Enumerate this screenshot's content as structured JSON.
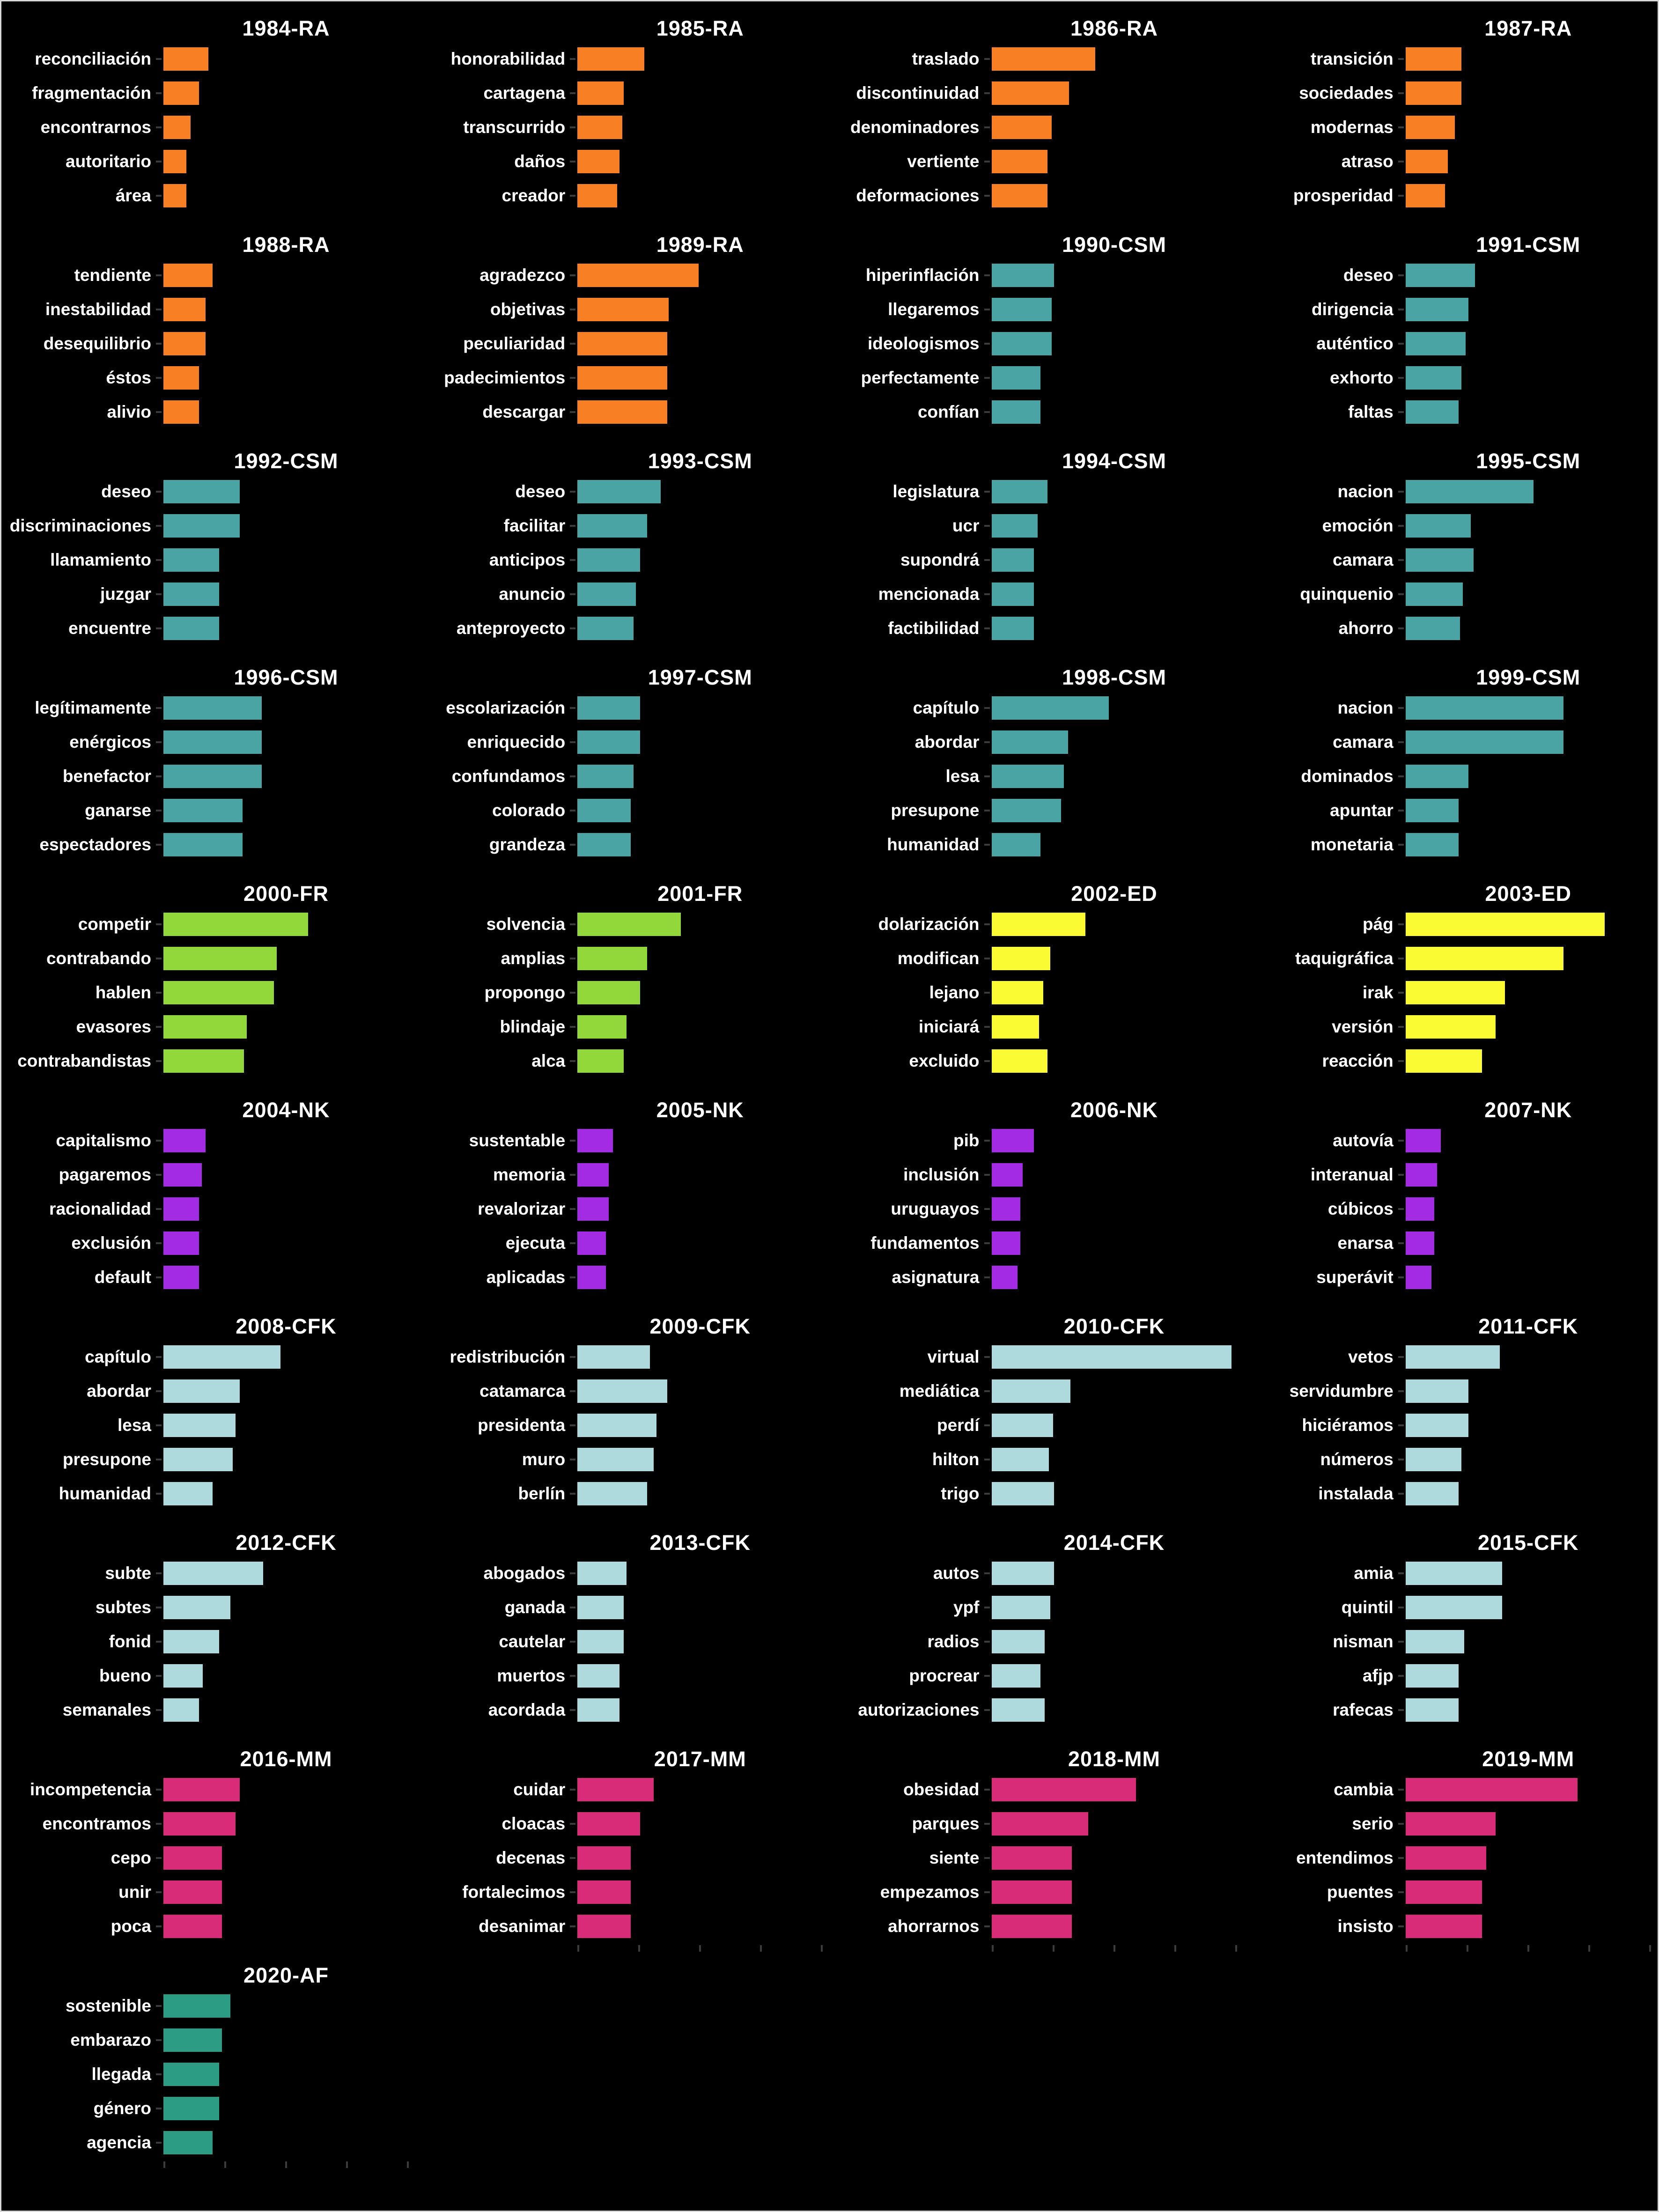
{
  "figure": {
    "background": "#000000",
    "tick_color": "#3b3b3b",
    "text_color": "#ffffff",
    "layout": {
      "columns": 4,
      "rows": 10,
      "legend": "none",
      "grid": "off"
    },
    "xlim": [
      0,
      180
    ],
    "groups": {
      "RA": "#f87f23",
      "CSM": "#4ba4a4",
      "FR": "#93d83a",
      "ED": "#fbfb33",
      "NK": "#a42be4",
      "CFK": "#aedade",
      "MM": "#d92c78",
      "AF": "#2d9c85"
    }
  },
  "chart_data": [
    {
      "type": "bar",
      "orientation": "horizontal",
      "title": "1984-RA",
      "group": "RA",
      "color": "#f87f23",
      "categories": [
        "reconciliación",
        "fragmentación",
        "encontrarnos",
        "autoritario",
        "área"
      ],
      "values": [
        33,
        26,
        20,
        17,
        17
      ]
    },
    {
      "type": "bar",
      "orientation": "horizontal",
      "title": "1985-RA",
      "group": "RA",
      "color": "#f87f23",
      "categories": [
        "honorabilidad",
        "cartagena",
        "transcurrido",
        "daños",
        "creador"
      ],
      "values": [
        49,
        34,
        33,
        31,
        29
      ]
    },
    {
      "type": "bar",
      "orientation": "horizontal",
      "title": "1986-RA",
      "group": "RA",
      "color": "#f87f23",
      "categories": [
        "traslado",
        "discontinuidad",
        "denominadores",
        "vertiente",
        "deformaciones"
      ],
      "values": [
        76,
        57,
        44,
        41,
        41
      ]
    },
    {
      "type": "bar",
      "orientation": "horizontal",
      "title": "1987-RA",
      "group": "RA",
      "color": "#f87f23",
      "categories": [
        "transición",
        "sociedades",
        "modernas",
        "atraso",
        "prosperidad"
      ],
      "values": [
        41,
        41,
        36,
        31,
        29
      ]
    },
    {
      "type": "bar",
      "orientation": "horizontal",
      "title": "1988-RA",
      "group": "RA",
      "color": "#f87f23",
      "categories": [
        "tendiente",
        "inestabilidad",
        "desequilibrio",
        "éstos",
        "alivio"
      ],
      "values": [
        36,
        31,
        31,
        26,
        26
      ]
    },
    {
      "type": "bar",
      "orientation": "horizontal",
      "title": "1989-RA",
      "group": "RA",
      "color": "#f87f23",
      "categories": [
        "agradezco",
        "objetivas",
        "peculiaridad",
        "padecimientos",
        "descargar"
      ],
      "values": [
        89,
        67,
        66,
        66,
        66
      ]
    },
    {
      "type": "bar",
      "orientation": "horizontal",
      "title": "1990-CSM",
      "group": "CSM",
      "color": "#4ba4a4",
      "categories": [
        "hiperinflación",
        "llegaremos",
        "ideologismos",
        "perfectamente",
        "confían"
      ],
      "values": [
        46,
        44,
        44,
        36,
        36
      ]
    },
    {
      "type": "bar",
      "orientation": "horizontal",
      "title": "1991-CSM",
      "group": "CSM",
      "color": "#4ba4a4",
      "categories": [
        "deseo",
        "dirigencia",
        "auténtico",
        "exhorto",
        "faltas"
      ],
      "values": [
        51,
        46,
        44,
        41,
        39
      ]
    },
    {
      "type": "bar",
      "orientation": "horizontal",
      "title": "1992-CSM",
      "group": "CSM",
      "color": "#4ba4a4",
      "categories": [
        "deseo",
        "discriminaciones",
        "llamamiento",
        "juzgar",
        "encuentre"
      ],
      "values": [
        56,
        56,
        41,
        41,
        41
      ]
    },
    {
      "type": "bar",
      "orientation": "horizontal",
      "title": "1993-CSM",
      "group": "CSM",
      "color": "#4ba4a4",
      "categories": [
        "deseo",
        "facilitar",
        "anticipos",
        "anuncio",
        "anteproyecto"
      ],
      "values": [
        61,
        51,
        46,
        43,
        41
      ]
    },
    {
      "type": "bar",
      "orientation": "horizontal",
      "title": "1994-CSM",
      "group": "CSM",
      "color": "#4ba4a4",
      "categories": [
        "legislatura",
        "ucr",
        "supondrá",
        "mencionada",
        "factibilidad"
      ],
      "values": [
        41,
        34,
        31,
        31,
        31
      ]
    },
    {
      "type": "bar",
      "orientation": "horizontal",
      "title": "1995-CSM",
      "group": "CSM",
      "color": "#4ba4a4",
      "categories": [
        "nacion",
        "emoción",
        "camara",
        "quinquenio",
        "ahorro"
      ],
      "values": [
        94,
        48,
        50,
        42,
        40
      ]
    },
    {
      "type": "bar",
      "orientation": "horizontal",
      "title": "1996-CSM",
      "group": "CSM",
      "color": "#4ba4a4",
      "categories": [
        "legítimamente",
        "enérgicos",
        "benefactor",
        "ganarse",
        "espectadores"
      ],
      "values": [
        72,
        72,
        72,
        58,
        58
      ]
    },
    {
      "type": "bar",
      "orientation": "horizontal",
      "title": "1997-CSM",
      "group": "CSM",
      "color": "#4ba4a4",
      "categories": [
        "escolarización",
        "enriquecido",
        "confundamos",
        "colorado",
        "grandeza"
      ],
      "values": [
        46,
        46,
        41,
        39,
        39
      ]
    },
    {
      "type": "bar",
      "orientation": "horizontal",
      "title": "1998-CSM",
      "group": "CSM",
      "color": "#4ba4a4",
      "categories": [
        "capítulo",
        "abordar",
        "lesa",
        "presupone",
        "humanidad"
      ],
      "values": [
        86,
        56,
        53,
        51,
        36
      ]
    },
    {
      "type": "bar",
      "orientation": "horizontal",
      "title": "1999-CSM",
      "group": "CSM",
      "color": "#4ba4a4",
      "categories": [
        "nacion",
        "camara",
        "dominados",
        "apuntar",
        "monetaria"
      ],
      "values": [
        116,
        116,
        46,
        39,
        39
      ]
    },
    {
      "type": "bar",
      "orientation": "horizontal",
      "title": "2000-FR",
      "group": "FR",
      "color": "#93d83a",
      "categories": [
        "competir",
        "contrabando",
        "hablen",
        "evasores",
        "contrabandistas"
      ],
      "values": [
        106,
        83,
        81,
        61,
        59
      ]
    },
    {
      "type": "bar",
      "orientation": "horizontal",
      "title": "2001-FR",
      "group": "FR",
      "color": "#93d83a",
      "categories": [
        "solvencia",
        "amplias",
        "propongo",
        "blindaje",
        "alca"
      ],
      "values": [
        76,
        51,
        46,
        36,
        34
      ]
    },
    {
      "type": "bar",
      "orientation": "horizontal",
      "title": "2002-ED",
      "group": "ED",
      "color": "#fbfb33",
      "categories": [
        "dolarización",
        "modifican",
        "lejano",
        "iniciará",
        "excluido"
      ],
      "values": [
        69,
        43,
        38,
        35,
        41
      ]
    },
    {
      "type": "bar",
      "orientation": "horizontal",
      "title": "2003-ED",
      "group": "ED",
      "color": "#fbfb33",
      "categories": [
        "pág",
        "taquigráfica",
        "irak",
        "versión",
        "reacción"
      ],
      "values": [
        146,
        116,
        73,
        66,
        56
      ]
    },
    {
      "type": "bar",
      "orientation": "horizontal",
      "title": "2004-NK",
      "group": "NK",
      "color": "#a42be4",
      "categories": [
        "capitalismo",
        "pagaremos",
        "racionalidad",
        "exclusión",
        "default"
      ],
      "values": [
        31,
        28,
        26,
        26,
        26
      ]
    },
    {
      "type": "bar",
      "orientation": "horizontal",
      "title": "2005-NK",
      "group": "NK",
      "color": "#a42be4",
      "categories": [
        "sustentable",
        "memoria",
        "revalorizar",
        "ejecuta",
        "aplicadas"
      ],
      "values": [
        26,
        23,
        23,
        21,
        21
      ]
    },
    {
      "type": "bar",
      "orientation": "horizontal",
      "title": "2006-NK",
      "group": "NK",
      "color": "#a42be4",
      "categories": [
        "pib",
        "inclusión",
        "uruguayos",
        "fundamentos",
        "asignatura"
      ],
      "values": [
        31,
        23,
        21,
        21,
        19
      ]
    },
    {
      "type": "bar",
      "orientation": "horizontal",
      "title": "2007-NK",
      "group": "NK",
      "color": "#a42be4",
      "categories": [
        "autovía",
        "interanual",
        "cúbicos",
        "enarsa",
        "superávit"
      ],
      "values": [
        26,
        23,
        21,
        21,
        19
      ]
    },
    {
      "type": "bar",
      "orientation": "horizontal",
      "title": "2008-CFK",
      "group": "CFK",
      "color": "#aedade",
      "categories": [
        "capítulo",
        "abordar",
        "lesa",
        "presupone",
        "humanidad"
      ],
      "values": [
        86,
        56,
        53,
        51,
        36
      ]
    },
    {
      "type": "bar",
      "orientation": "horizontal",
      "title": "2009-CFK",
      "group": "CFK",
      "color": "#aedade",
      "categories": [
        "redistribución",
        "catamarca",
        "presidenta",
        "muro",
        "berlín"
      ],
      "values": [
        53,
        66,
        58,
        56,
        51
      ]
    },
    {
      "type": "bar",
      "orientation": "horizontal",
      "title": "2010-CFK",
      "group": "CFK",
      "color": "#aedade",
      "categories": [
        "virtual",
        "mediática",
        "perdí",
        "hilton",
        "trigo"
      ],
      "values": [
        176,
        58,
        45,
        42,
        46
      ]
    },
    {
      "type": "bar",
      "orientation": "horizontal",
      "title": "2011-CFK",
      "group": "CFK",
      "color": "#aedade",
      "categories": [
        "vetos",
        "servidumbre",
        "hiciéramos",
        "números",
        "instalada"
      ],
      "values": [
        69,
        46,
        46,
        41,
        39
      ]
    },
    {
      "type": "bar",
      "orientation": "horizontal",
      "title": "2012-CFK",
      "group": "CFK",
      "color": "#aedade",
      "categories": [
        "subte",
        "subtes",
        "fonid",
        "bueno",
        "semanales"
      ],
      "values": [
        73,
        49,
        41,
        29,
        26
      ]
    },
    {
      "type": "bar",
      "orientation": "horizontal",
      "title": "2013-CFK",
      "group": "CFK",
      "color": "#aedade",
      "categories": [
        "abogados",
        "ganada",
        "cautelar",
        "muertos",
        "acordada"
      ],
      "values": [
        36,
        34,
        34,
        31,
        31
      ]
    },
    {
      "type": "bar",
      "orientation": "horizontal",
      "title": "2014-CFK",
      "group": "CFK",
      "color": "#aedade",
      "categories": [
        "autos",
        "ypf",
        "radios",
        "procrear",
        "autorizaciones"
      ],
      "values": [
        46,
        43,
        39,
        36,
        39
      ]
    },
    {
      "type": "bar",
      "orientation": "horizontal",
      "title": "2015-CFK",
      "group": "CFK",
      "color": "#aedade",
      "categories": [
        "amia",
        "quintil",
        "nisman",
        "afjp",
        "rafecas"
      ],
      "values": [
        71,
        71,
        43,
        39,
        39
      ]
    },
    {
      "type": "bar",
      "orientation": "horizontal",
      "title": "2016-MM",
      "group": "MM",
      "color": "#d92c78",
      "categories": [
        "incompetencia",
        "encontramos",
        "cepo",
        "unir",
        "poca"
      ],
      "values": [
        56,
        53,
        43,
        43,
        43
      ]
    },
    {
      "type": "bar",
      "orientation": "horizontal",
      "title": "2017-MM",
      "group": "MM",
      "color": "#d92c78",
      "categories": [
        "cuidar",
        "cloacas",
        "decenas",
        "fortalecimos",
        "desanimar"
      ],
      "values": [
        56,
        46,
        39,
        39,
        39
      ],
      "x_ticks": true
    },
    {
      "type": "bar",
      "orientation": "horizontal",
      "title": "2018-MM",
      "group": "MM",
      "color": "#d92c78",
      "categories": [
        "obesidad",
        "parques",
        "siente",
        "empezamos",
        "ahorrarnos"
      ],
      "values": [
        106,
        71,
        59,
        59,
        59
      ],
      "x_ticks": true
    },
    {
      "type": "bar",
      "orientation": "horizontal",
      "title": "2019-MM",
      "group": "MM",
      "color": "#d92c78",
      "categories": [
        "cambia",
        "serio",
        "entendimos",
        "puentes",
        "insisto"
      ],
      "values": [
        126,
        66,
        59,
        56,
        56
      ],
      "x_ticks": true
    },
    {
      "type": "bar",
      "orientation": "horizontal",
      "title": "2020-AF",
      "group": "AF",
      "color": "#2d9c85",
      "categories": [
        "sostenible",
        "embarazo",
        "llegada",
        "género",
        "agencia"
      ],
      "values": [
        49,
        43,
        41,
        41,
        36
      ],
      "x_ticks": true
    }
  ]
}
